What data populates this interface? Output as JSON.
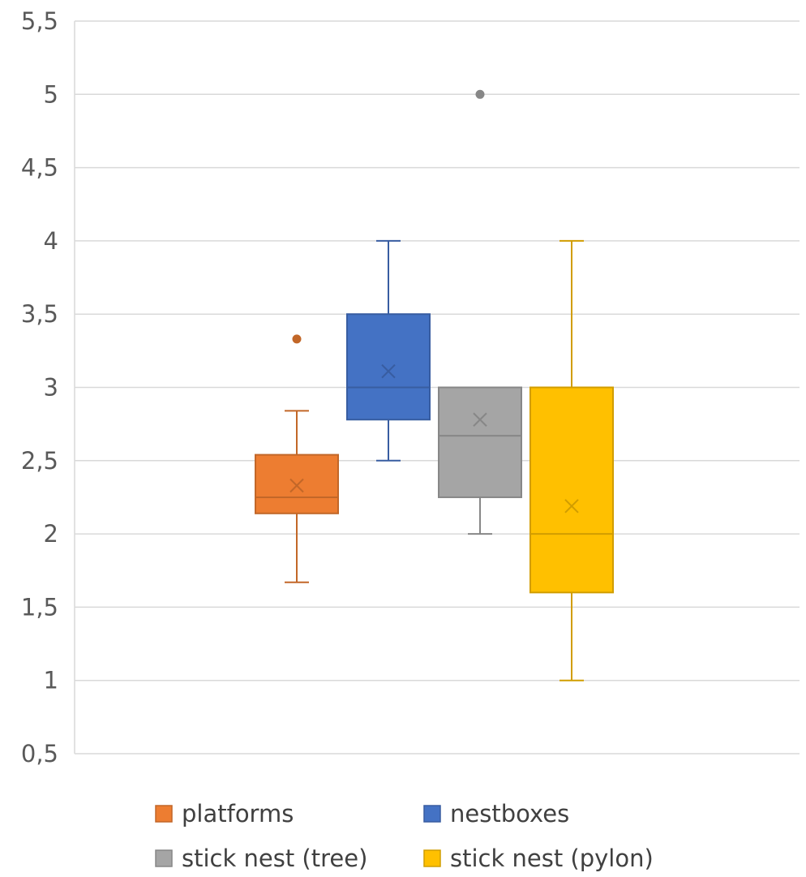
{
  "chart_data": {
    "type": "box",
    "title": "",
    "xlabel": "",
    "ylabel": "",
    "ylim": [
      0.5,
      5.5
    ],
    "y_tick_values": [
      0.5,
      1,
      1.5,
      2,
      2.5,
      3,
      3.5,
      4,
      4.5,
      5,
      5.5
    ],
    "y_tick_labels": [
      "0,5",
      "1",
      "1,5",
      "2",
      "2,5",
      "3",
      "3,5",
      "4",
      "4,5",
      "5",
      "5,5"
    ],
    "grid": true,
    "legend_position": "bottom",
    "series": [
      {
        "name": "platforms",
        "color": "#ED7D31",
        "min": 1.67,
        "q1": 2.14,
        "median": 2.25,
        "q3": 2.54,
        "max": 2.84,
        "mean": 2.33,
        "outliers": [
          3.33
        ]
      },
      {
        "name": "nestboxes",
        "color": "#4472C4",
        "min": 2.5,
        "q1": 2.78,
        "median": 3.0,
        "q3": 3.5,
        "max": 4.0,
        "mean": 3.11,
        "outliers": []
      },
      {
        "name": "stick nest (tree)",
        "color": "#A5A5A5",
        "min": 2.0,
        "q1": 2.25,
        "median": 2.67,
        "q3": 3.0,
        "max": 3.0,
        "mean": 2.78,
        "outliers": [
          5.0
        ]
      },
      {
        "name": "stick nest (pylon)",
        "color": "#FFC000",
        "min": 1.0,
        "q1": 1.6,
        "median": 2.0,
        "q3": 3.0,
        "max": 4.0,
        "mean": 2.19,
        "outliers": []
      }
    ]
  }
}
